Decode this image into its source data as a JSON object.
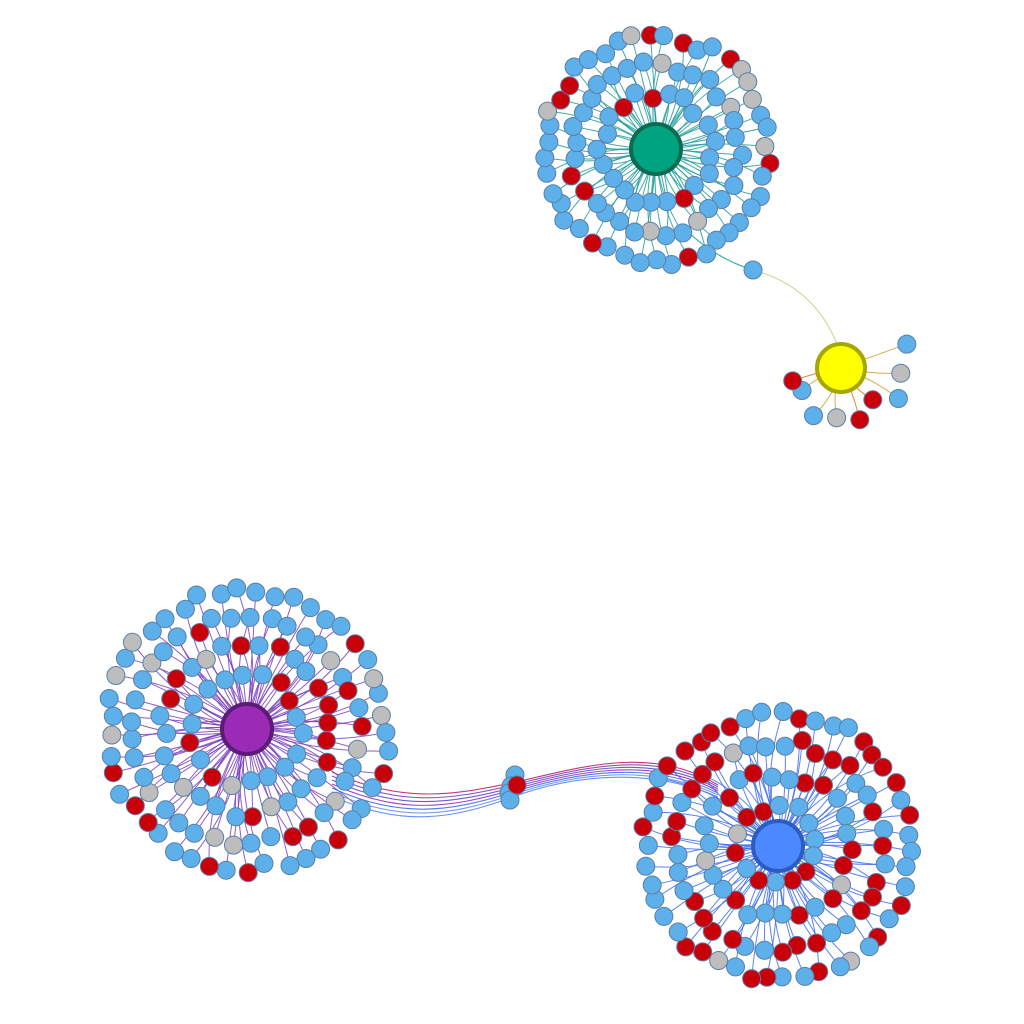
{
  "diagram": {
    "type": "network-graph",
    "node_colors": {
      "blue": "#5DB0EA",
      "red": "#C8000A",
      "gray": "#BDBDBD",
      "leaf_stroke": "#5A7FA8"
    },
    "hub_colors": {
      "green": "#00A37F",
      "yellow": "#FFFF00",
      "purple": "#9B2AB6",
      "blue": "#4C88FF"
    },
    "edge_colors": {
      "green_cluster": "#1E9C9A",
      "purple_cluster": "#7A3FC0",
      "blue_cluster": "#3E6CF0",
      "yellow_cluster": "#C8A030"
    },
    "clusters": [
      {
        "hub": "green",
        "leaf_count": 96,
        "red": 13,
        "gray": 10
      },
      {
        "hub": "yellow",
        "leaf_count": 9,
        "red": 3,
        "gray": 2
      },
      {
        "hub": "purple",
        "leaf_count": 128,
        "red": 27,
        "gray": 16
      },
      {
        "hub": "blue",
        "leaf_count": 124,
        "red": 56,
        "gray": 6
      }
    ],
    "links": [
      {
        "from": "green",
        "to": "yellow"
      },
      {
        "from": "purple",
        "to": "blue"
      }
    ]
  }
}
